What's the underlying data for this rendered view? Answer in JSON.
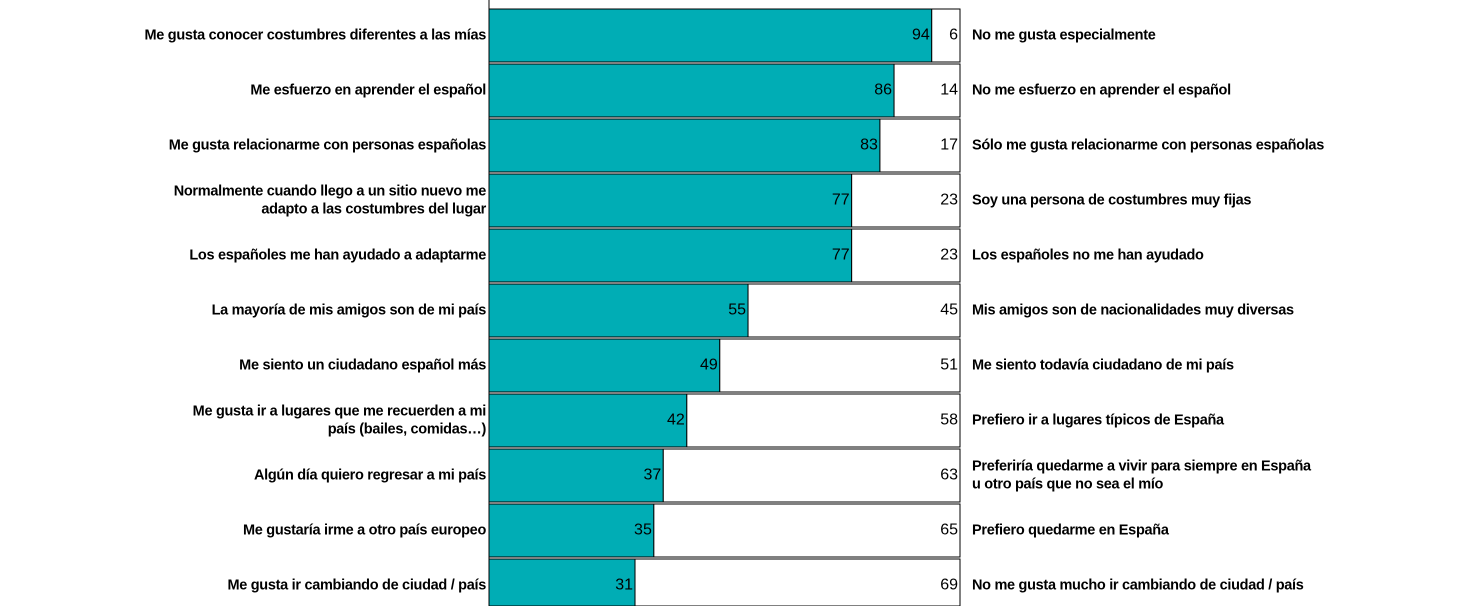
{
  "chart_data": {
    "type": "bar",
    "orientation": "horizontal",
    "stacked": true,
    "xlim": [
      0,
      100
    ],
    "categories": [
      "Me gusta conocer costumbres diferentes a las mías",
      "Me esfuerzo en aprender el español",
      "Me gusta relacionarme con personas españolas",
      [
        "Normalmente cuando llego a un sitio nuevo me",
        "adapto a las costumbres del lugar"
      ],
      "Los españoles me han ayudado a adaptarme",
      "La mayoría de mis amigos son de mi país",
      "Me siento un ciudadano español más",
      [
        "Me gusta ir a lugares que me recuerden a mi",
        "país (bailes, comidas…)"
      ],
      "Algún día quiero regresar a mi país",
      "Me gustaría irme a otro país europeo",
      "Me gusta ir cambiando de ciudad / país"
    ],
    "categories_right": [
      "No me gusta especialmente",
      "No me esfuerzo en aprender el español",
      "Sólo me gusta relacionarme con personas españolas",
      "Soy una persona de costumbres muy fijas",
      "Los españoles no me han ayudado",
      "Mis amigos son de nacionalidades muy diversas",
      "Me siento todavía ciudadano de mi país",
      "Prefiero ir a lugares típicos de España",
      [
        "Preferiría quedarme a vivir para siempre en España",
        "u otro país que no sea el mío"
      ],
      "Prefiero quedarme en España",
      "No me gusta mucho ir cambiando de ciudad / país"
    ],
    "series": [
      {
        "color": "#00adb5",
        "values": [
          94,
          86,
          83,
          77,
          77,
          55,
          49,
          42,
          37,
          35,
          31
        ]
      },
      {
        "color": "#ffffff",
        "values": [
          6,
          14,
          17,
          23,
          23,
          45,
          51,
          58,
          63,
          65,
          69
        ]
      }
    ]
  }
}
